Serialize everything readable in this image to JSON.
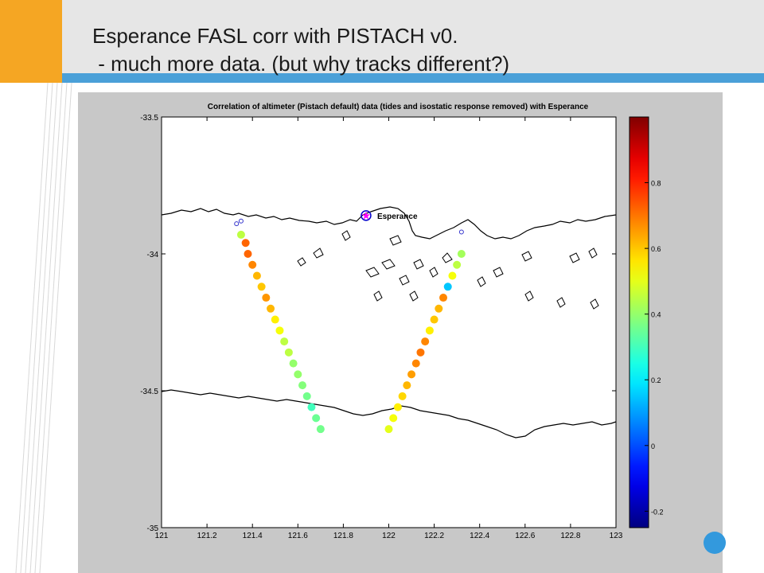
{
  "slide": {
    "title": "Esperance FASL corr with PISTACH v0.\n - much more data. (but why tracks different?)"
  },
  "colors": {
    "orange_accent": "#f5a623",
    "title_band": "#e6e6e6",
    "divider_blue": "#4aa0d8",
    "figure_bg": "#c8c8c8",
    "station_marker": "#ff00ff"
  },
  "chart_data": {
    "type": "scatter",
    "title": "Correlation of altimeter (Pistach default)  data (tides and isostatic response removed) with Esperance",
    "xlim": [
      121,
      123
    ],
    "ylim": [
      -35,
      -33.5
    ],
    "x_ticks": [
      121,
      121.2,
      121.4,
      121.6,
      121.8,
      122,
      122.2,
      122.4,
      122.6,
      122.8,
      123
    ],
    "x_tick_labels": [
      "121",
      "121.2",
      "121.4",
      "121.6",
      "121.8",
      "122",
      "122.2",
      "122.4",
      "122.6",
      "122.8",
      "123"
    ],
    "y_ticks": [
      -33.5,
      -34,
      -34.5,
      -35
    ],
    "y_tick_labels": [
      "-33.5",
      "-34",
      "-34.5",
      "-35"
    ],
    "colorbar": {
      "colormap": "jet",
      "range": [
        -0.25,
        1.0
      ],
      "ticks": [
        -0.2,
        0,
        0.2,
        0.4,
        0.6,
        0.8
      ],
      "tick_labels": [
        "-0.2",
        "0",
        "0.2",
        "0.4",
        "0.6",
        "0.8"
      ]
    },
    "station": {
      "label": "Esperance",
      "lon": 121.9,
      "lat": -33.86
    },
    "tracks": [
      {
        "points": [
          {
            "lon": 121.35,
            "lat": -33.93,
            "corr": 0.45
          },
          {
            "lon": 121.37,
            "lat": -33.96,
            "corr": 0.72
          },
          {
            "lon": 121.38,
            "lat": -34.0,
            "corr": 0.72
          },
          {
            "lon": 121.4,
            "lat": -34.04,
            "corr": 0.68
          },
          {
            "lon": 121.42,
            "lat": -34.08,
            "corr": 0.62
          },
          {
            "lon": 121.44,
            "lat": -34.12,
            "corr": 0.6
          },
          {
            "lon": 121.46,
            "lat": -34.16,
            "corr": 0.66
          },
          {
            "lon": 121.48,
            "lat": -34.2,
            "corr": 0.62
          },
          {
            "lon": 121.5,
            "lat": -34.24,
            "corr": 0.55
          },
          {
            "lon": 121.52,
            "lat": -34.28,
            "corr": 0.52
          },
          {
            "lon": 121.54,
            "lat": -34.32,
            "corr": 0.45
          },
          {
            "lon": 121.56,
            "lat": -34.36,
            "corr": 0.45
          },
          {
            "lon": 121.58,
            "lat": -34.4,
            "corr": 0.4
          },
          {
            "lon": 121.6,
            "lat": -34.44,
            "corr": 0.4
          },
          {
            "lon": 121.62,
            "lat": -34.48,
            "corr": 0.38
          },
          {
            "lon": 121.64,
            "lat": -34.52,
            "corr": 0.36
          },
          {
            "lon": 121.66,
            "lat": -34.56,
            "corr": 0.3
          },
          {
            "lon": 121.68,
            "lat": -34.6,
            "corr": 0.35
          },
          {
            "lon": 121.7,
            "lat": -34.64,
            "corr": 0.36
          }
        ],
        "hollow_points": [
          {
            "lon": 121.33,
            "lat": -33.89
          },
          {
            "lon": 121.35,
            "lat": -33.88
          }
        ]
      },
      {
        "points": [
          {
            "lon": 122.0,
            "lat": -34.64,
            "corr": 0.5
          },
          {
            "lon": 122.02,
            "lat": -34.6,
            "corr": 0.52
          },
          {
            "lon": 122.04,
            "lat": -34.56,
            "corr": 0.55
          },
          {
            "lon": 122.06,
            "lat": -34.52,
            "corr": 0.58
          },
          {
            "lon": 122.08,
            "lat": -34.48,
            "corr": 0.62
          },
          {
            "lon": 122.1,
            "lat": -34.44,
            "corr": 0.65
          },
          {
            "lon": 122.12,
            "lat": -34.4,
            "corr": 0.68
          },
          {
            "lon": 122.14,
            "lat": -34.36,
            "corr": 0.7
          },
          {
            "lon": 122.16,
            "lat": -34.32,
            "corr": 0.68
          },
          {
            "lon": 122.18,
            "lat": -34.28,
            "corr": 0.55
          },
          {
            "lon": 122.2,
            "lat": -34.24,
            "corr": 0.6
          },
          {
            "lon": 122.22,
            "lat": -34.2,
            "corr": 0.62
          },
          {
            "lon": 122.24,
            "lat": -34.16,
            "corr": 0.68
          },
          {
            "lon": 122.26,
            "lat": -34.12,
            "corr": 0.15
          },
          {
            "lon": 122.28,
            "lat": -34.08,
            "corr": 0.52
          },
          {
            "lon": 122.3,
            "lat": -34.04,
            "corr": 0.45
          },
          {
            "lon": 122.32,
            "lat": -34.0,
            "corr": 0.42
          }
        ],
        "hollow_points": [
          {
            "lon": 122.32,
            "lat": -33.92
          }
        ]
      }
    ]
  }
}
